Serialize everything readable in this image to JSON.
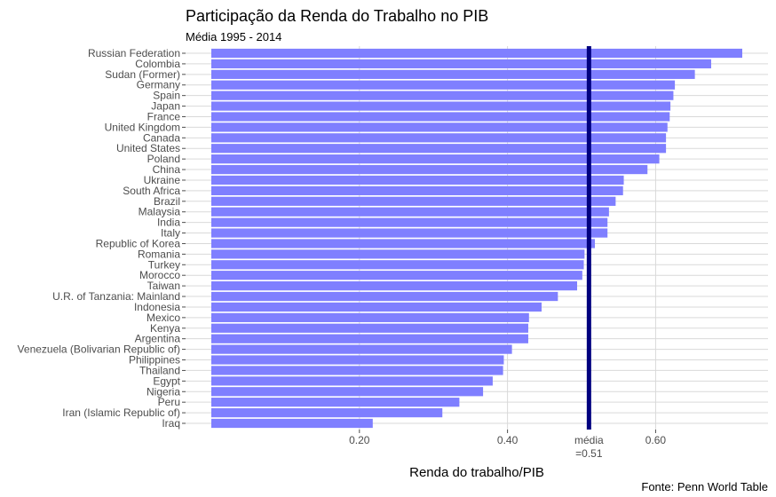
{
  "chart_data": {
    "type": "bar",
    "orientation": "horizontal",
    "title": "Participação da Renda do Trabalho no PIB",
    "subtitle": "Média 1995 - 2014",
    "xlabel": "Renda do trabalho/PIB",
    "caption": "Fonte: Penn World Table",
    "bar_color": "#7f7fff",
    "reference_line": {
      "value": 0.51,
      "color": "#00007f",
      "label_line1": "média",
      "label_line2": "=0.51"
    },
    "xlim": [
      0,
      0.76
    ],
    "xticks": [
      {
        "value": 0.2,
        "label": "0.20"
      },
      {
        "value": 0.4,
        "label": "0.40"
      },
      {
        "value": 0.6,
        "label": "0.60"
      }
    ],
    "grid": true,
    "categories": [
      "Russian Federation",
      "Colombia",
      "Sudan (Former)",
      "Germany",
      "Spain",
      "Japan",
      "France",
      "United Kingdom",
      "Canada",
      "United States",
      "Poland",
      "China",
      "Ukraine",
      "South Africa",
      "Brazil",
      "Malaysia",
      "India",
      "Italy",
      "Republic of Korea",
      "Romania",
      "Turkey",
      "Morocco",
      "Taiwan",
      "U.R. of Tanzania: Mainland",
      "Indonesia",
      "Mexico",
      "Kenya",
      "Argentina",
      "Venezuela (Bolivarian Republic of)",
      "Philippines",
      "Thailand",
      "Egypt",
      "Nigeria",
      "Peru",
      "Iran (Islamic Republic of)",
      "Iraq"
    ],
    "values": [
      0.717,
      0.675,
      0.653,
      0.626,
      0.624,
      0.62,
      0.619,
      0.616,
      0.614,
      0.614,
      0.605,
      0.589,
      0.557,
      0.556,
      0.546,
      0.537,
      0.535,
      0.535,
      0.518,
      0.504,
      0.503,
      0.501,
      0.494,
      0.468,
      0.446,
      0.429,
      0.428,
      0.428,
      0.406,
      0.395,
      0.394,
      0.38,
      0.367,
      0.335,
      0.312,
      0.218
    ]
  }
}
